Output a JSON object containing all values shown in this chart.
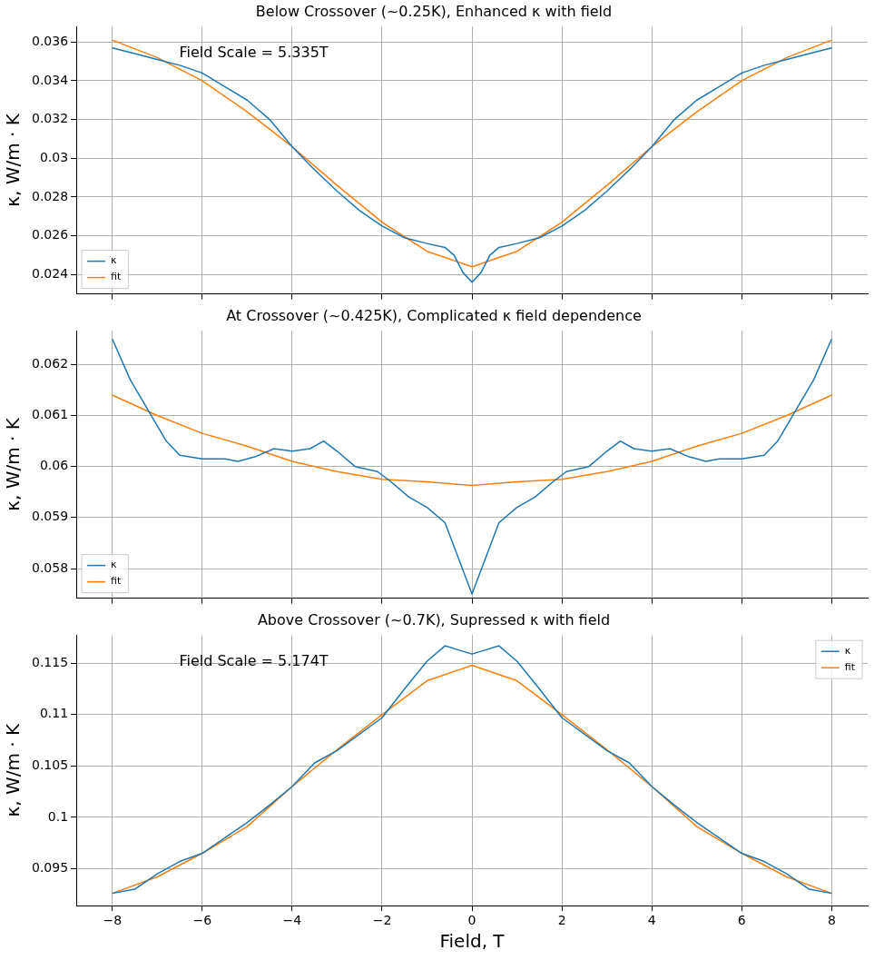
{
  "chart_data": [
    {
      "type": "line",
      "title": "Below Crossover (~0.25K), Enhanced κ with field",
      "ylabel": "κ, W/m · K",
      "annotations": [
        "Field Scale = 5.335T"
      ],
      "xlim": [
        -8.8,
        8.8
      ],
      "xticks": [
        -8,
        -6,
        -4,
        -2,
        0,
        2,
        4,
        6,
        8
      ],
      "ylim": [
        0.023,
        0.0368
      ],
      "yticks": [
        0.024,
        0.026,
        0.028,
        0.03,
        0.032,
        0.034,
        0.036
      ],
      "grid": true,
      "legend": "bottom left",
      "tick_labels": "y",
      "series": [
        {
          "name": "κ",
          "color": "#1f77b4",
          "x": [
            -8,
            -7.5,
            -7,
            -6.5,
            -6,
            -5.5,
            -5,
            -4.5,
            -4,
            -3.5,
            -3,
            -2.5,
            -2,
            -1.5,
            -1,
            -0.6,
            -0.4,
            -0.2,
            0,
            0.2,
            0.4,
            0.6,
            1,
            1.5,
            2,
            2.5,
            3,
            3.5,
            4,
            4.5,
            5,
            5.5,
            6,
            6.5,
            7,
            7.5,
            8
          ],
          "values": [
            0.0357,
            0.0354,
            0.0351,
            0.0348,
            0.0344,
            0.0337,
            0.033,
            0.032,
            0.0306,
            0.0294,
            0.0283,
            0.0273,
            0.0265,
            0.0259,
            0.0256,
            0.0254,
            0.025,
            0.0241,
            0.0236,
            0.0241,
            0.025,
            0.0254,
            0.0256,
            0.0259,
            0.0265,
            0.0273,
            0.0283,
            0.0294,
            0.0306,
            0.032,
            0.033,
            0.0337,
            0.0344,
            0.0348,
            0.0351,
            0.0354,
            0.0357
          ]
        },
        {
          "name": "fit",
          "color": "#ff7f0e",
          "x": [
            -8,
            -7,
            -6,
            -5,
            -4,
            -3,
            -2,
            -1,
            0,
            1,
            2,
            3,
            4,
            5,
            6,
            7,
            8
          ],
          "values": [
            0.0361,
            0.0352,
            0.034,
            0.0324,
            0.0306,
            0.0286,
            0.0267,
            0.0252,
            0.0244,
            0.0252,
            0.0267,
            0.0286,
            0.0306,
            0.0324,
            0.034,
            0.0352,
            0.0361
          ]
        }
      ]
    },
    {
      "type": "line",
      "title": "At Crossover (~0.425K), Complicated κ field dependence",
      "ylabel": "κ, W/m · K",
      "xlim": [
        -8.8,
        8.8
      ],
      "xticks": [
        -8,
        -6,
        -4,
        -2,
        0,
        2,
        4,
        6,
        8
      ],
      "ylim": [
        0.05742,
        0.06266
      ],
      "yticks": [
        0.058,
        0.059,
        0.06,
        0.061,
        0.062
      ],
      "grid": true,
      "legend": "bottom left",
      "tick_labels": "y",
      "series": [
        {
          "name": "κ",
          "color": "#1f77b4",
          "x": [
            -8,
            -7.6,
            -7.2,
            -6.8,
            -6.5,
            -6,
            -5.5,
            -5.2,
            -4.8,
            -4.4,
            -4,
            -3.6,
            -3.3,
            -3,
            -2.6,
            -2.1,
            -1.8,
            -1.4,
            -1,
            -0.6,
            -0.3,
            0,
            0.3,
            0.6,
            1,
            1.4,
            1.8,
            2.1,
            2.6,
            3,
            3.3,
            3.6,
            4,
            4.4,
            4.8,
            5.2,
            5.5,
            6,
            6.5,
            6.8,
            7.2,
            7.6,
            8
          ],
          "values": [
            0.0625,
            0.0617,
            0.0611,
            0.0605,
            0.06022,
            0.06015,
            0.06015,
            0.0601,
            0.0602,
            0.06035,
            0.0603,
            0.06035,
            0.0605,
            0.0603,
            0.06,
            0.0599,
            0.0597,
            0.0594,
            0.0592,
            0.0589,
            0.0582,
            0.0575,
            0.0582,
            0.0589,
            0.0592,
            0.0594,
            0.0597,
            0.0599,
            0.06,
            0.0603,
            0.0605,
            0.06035,
            0.0603,
            0.06035,
            0.0602,
            0.0601,
            0.06015,
            0.06015,
            0.06022,
            0.0605,
            0.0611,
            0.0617,
            0.0625
          ]
        },
        {
          "name": "fit",
          "color": "#ff7f0e",
          "x": [
            -8,
            -7,
            -6,
            -5,
            -4,
            -3,
            -2,
            -1,
            0,
            1,
            2,
            3,
            4,
            5,
            6,
            7,
            8
          ],
          "values": [
            0.0614,
            0.061,
            0.06065,
            0.0604,
            0.0601,
            0.0599,
            0.05975,
            0.0597,
            0.05963,
            0.0597,
            0.05975,
            0.0599,
            0.0601,
            0.0604,
            0.06065,
            0.061,
            0.0614
          ]
        }
      ]
    },
    {
      "type": "line",
      "title": "Above Crossover (~0.7K), Supressed κ with field",
      "xlabel": "Field, T",
      "ylabel": "κ, W/m · K",
      "annotations": [
        "Field Scale = 5.174T"
      ],
      "xlim": [
        -8.8,
        8.8
      ],
      "xticks": [
        -8,
        -6,
        -4,
        -2,
        0,
        2,
        4,
        6,
        8
      ],
      "ylim": [
        0.0914,
        0.11775
      ],
      "yticks": [
        0.095,
        0.1,
        0.105,
        0.11,
        0.115
      ],
      "grid": true,
      "legend": "top right",
      "series": [
        {
          "name": "κ",
          "color": "#1f77b4",
          "x": [
            -8,
            -7.5,
            -7,
            -6.5,
            -6,
            -5.5,
            -5,
            -4.5,
            -4,
            -3.5,
            -3,
            -2,
            -1.5,
            -1,
            -0.6,
            -0.3,
            0,
            0.3,
            0.6,
            1,
            1.5,
            2,
            3,
            3.5,
            4,
            4.5,
            5,
            5.5,
            6,
            6.5,
            7,
            7.5,
            8
          ],
          "values": [
            0.0926,
            0.093,
            0.0945,
            0.0957,
            0.0965,
            0.098,
            0.0995,
            0.1012,
            0.103,
            0.1053,
            0.1065,
            0.1097,
            0.1125,
            0.1152,
            0.1167,
            0.1163,
            0.1159,
            0.1163,
            0.1167,
            0.1152,
            0.1125,
            0.1097,
            0.1065,
            0.1053,
            0.103,
            0.1012,
            0.0995,
            0.098,
            0.0965,
            0.0957,
            0.0945,
            0.093,
            0.0926
          ]
        },
        {
          "name": "fit",
          "color": "#ff7f0e",
          "x": [
            -8,
            -7,
            -6,
            -5,
            -4,
            -3,
            -2,
            -1,
            0,
            1,
            2,
            3,
            4,
            5,
            6,
            7,
            8
          ],
          "values": [
            0.0926,
            0.0942,
            0.0965,
            0.0991,
            0.103,
            0.1066,
            0.11,
            0.1133,
            0.1148,
            0.1133,
            0.11,
            0.1066,
            0.103,
            0.0991,
            0.0965,
            0.0942,
            0.0926
          ]
        }
      ]
    }
  ]
}
